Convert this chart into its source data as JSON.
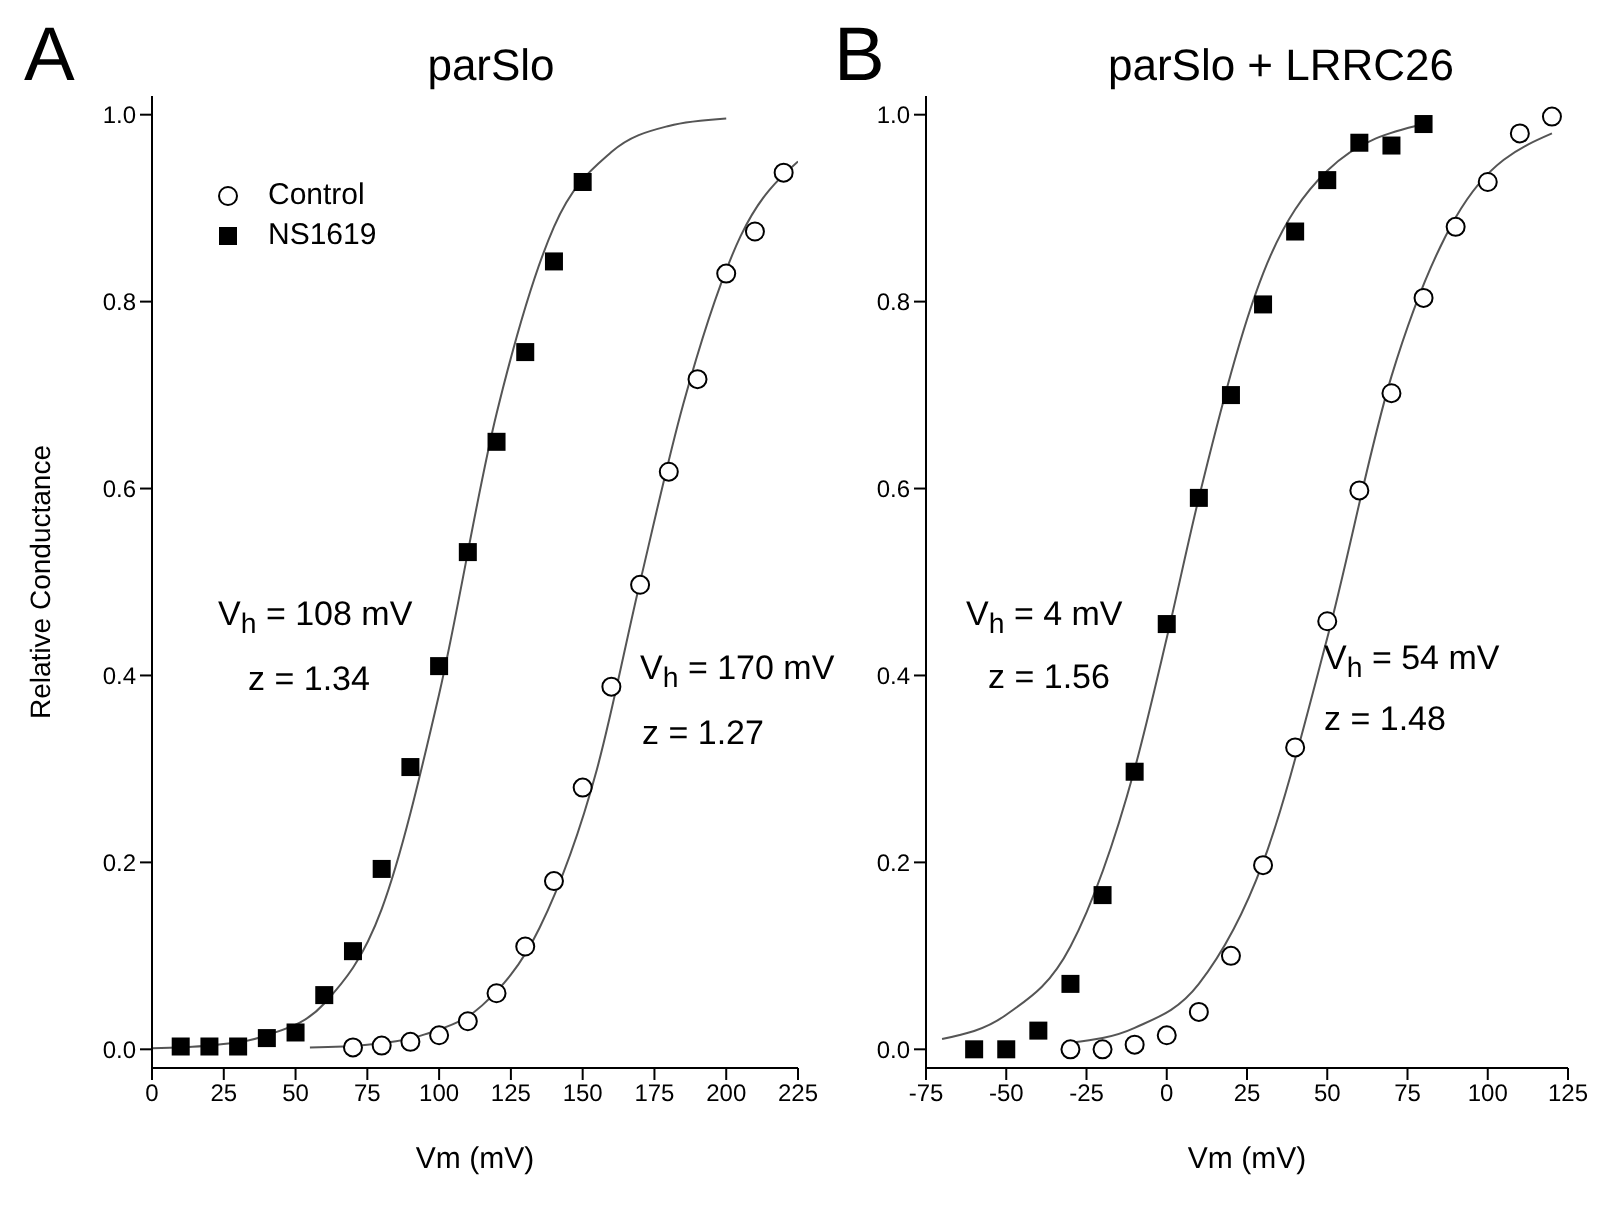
{
  "chart_data": [
    {
      "type": "scatter",
      "title": "parSlo",
      "xlabel": "Vm (mV)",
      "ylabel": "Relative Conductance",
      "xlim": [
        0,
        225
      ],
      "xticks": [
        0,
        25,
        50,
        75,
        100,
        125,
        150,
        175,
        200,
        225
      ],
      "ylim": [
        -0.02,
        1.02
      ],
      "yticks": [
        {
          "value": 0,
          "label": "0.0"
        },
        {
          "value": 0.2,
          "label": "0.2"
        },
        {
          "value": 0.4,
          "label": "0.4"
        },
        {
          "value": 0.6,
          "label": "0.6"
        },
        {
          "value": 0.8,
          "label": "0.8"
        },
        {
          "value": 1,
          "label": "1.0"
        }
      ],
      "grid": false,
      "legend": "top left",
      "annotations": [
        "A",
        "V$_{h}$ = 108 mV",
        "z = 1.34",
        "V$_{h}$ = 170 mV",
        "z = 1.27"
      ],
      "series": [
        {
          "name": "Control",
          "color": "#000000",
          "marker": "circle",
          "x": [
            70,
            80,
            90,
            100,
            110,
            120,
            130,
            140,
            150,
            160,
            170,
            180,
            190,
            200,
            210,
            220
          ],
          "values": [
            0.002,
            0.004,
            0.008,
            0.015,
            0.03,
            0.06,
            0.11,
            0.18,
            0.28,
            0.388,
            0.497,
            0.618,
            0.717,
            0.83,
            0.875,
            0.938
          ]
        },
        {
          "name": "NS1619",
          "color": "#000000",
          "marker": "square",
          "x": [
            10,
            20,
            30,
            40,
            50,
            60,
            70,
            80,
            90,
            100,
            110,
            120,
            130,
            140,
            150
          ],
          "values": [
            0.003,
            0.003,
            0.003,
            0.012,
            0.018,
            0.058,
            0.105,
            0.193,
            0.302,
            0.41,
            0.532,
            0.65,
            0.746,
            0.843,
            0.928
          ]
        },
        {
          "type": "line",
          "color": "#555555",
          "marker": "none",
          "x": [
            0,
            20,
            40,
            60,
            80,
            100,
            120,
            140,
            160,
            180,
            200
          ],
          "values": [
            0.001,
            0.004,
            0.015,
            0.049,
            0.15,
            0.38,
            0.68,
            0.88,
            0.96,
            0.988,
            0.996
          ]
        },
        {
          "type": "line",
          "color": "#555555",
          "marker": "none",
          "x": [
            55,
            75,
            95,
            115,
            135,
            155,
            170,
            185,
            205,
            225
          ],
          "values": [
            0.002,
            0.005,
            0.016,
            0.047,
            0.13,
            0.3,
            0.5,
            0.69,
            0.87,
            0.95
          ]
        }
      ]
    },
    {
      "type": "scatter",
      "title": "parSlo + LRRC26",
      "xlabel": "Vm (mV)",
      "xlim": [
        -75,
        125
      ],
      "xticks": [
        -75,
        -50,
        -25,
        0,
        25,
        50,
        75,
        100,
        125
      ],
      "ylim": [
        -0.02,
        1.02
      ],
      "yticks": [
        {
          "value": 0,
          "label": "0.0"
        },
        {
          "value": 0.2,
          "label": "0.2"
        },
        {
          "value": 0.4,
          "label": "0.4"
        },
        {
          "value": 0.6,
          "label": "0.6"
        },
        {
          "value": 0.8,
          "label": "0.8"
        },
        {
          "value": 1,
          "label": "1.0"
        }
      ],
      "grid": false,
      "annotations": [
        "B",
        "V$_{h}$ = 4 mV",
        "z = 1.56",
        "V$_{h}$ = 54 mV",
        "z = 1.48"
      ],
      "series": [
        {
          "color": "#000000",
          "marker": "circle",
          "x": [
            -30,
            -20,
            -10,
            0,
            10,
            20,
            30,
            40,
            50,
            60,
            70,
            80,
            90,
            100,
            110,
            120
          ],
          "values": [
            0,
            0,
            0.005,
            0.015,
            0.04,
            0.1,
            0.197,
            0.323,
            0.458,
            0.598,
            0.702,
            0.804,
            0.88,
            0.928,
            0.98,
            0.998
          ]
        },
        {
          "color": "#000000",
          "marker": "square",
          "x": [
            -60,
            -50,
            -40,
            -30,
            -20,
            -10,
            0,
            10,
            20,
            30,
            40,
            50,
            60,
            70,
            80
          ],
          "values": [
            0,
            0,
            0.02,
            0.07,
            0.165,
            0.297,
            0.455,
            0.59,
            0.7,
            0.797,
            0.875,
            0.93,
            0.97,
            0.967,
            0.99
          ]
        },
        {
          "type": "line",
          "color": "#555555",
          "marker": "none",
          "x": [
            -70,
            -50,
            -30,
            -10,
            0,
            10,
            30,
            50,
            80
          ],
          "values": [
            0.011,
            0.037,
            0.11,
            0.3,
            0.44,
            0.59,
            0.83,
            0.94,
            0.99
          ]
        },
        {
          "type": "line",
          "color": "#555555",
          "marker": "none",
          "x": [
            -30,
            -10,
            10,
            30,
            50,
            70,
            90,
            120
          ],
          "values": [
            0.007,
            0.023,
            0.07,
            0.2,
            0.44,
            0.72,
            0.89,
            0.98
          ]
        }
      ]
    }
  ]
}
